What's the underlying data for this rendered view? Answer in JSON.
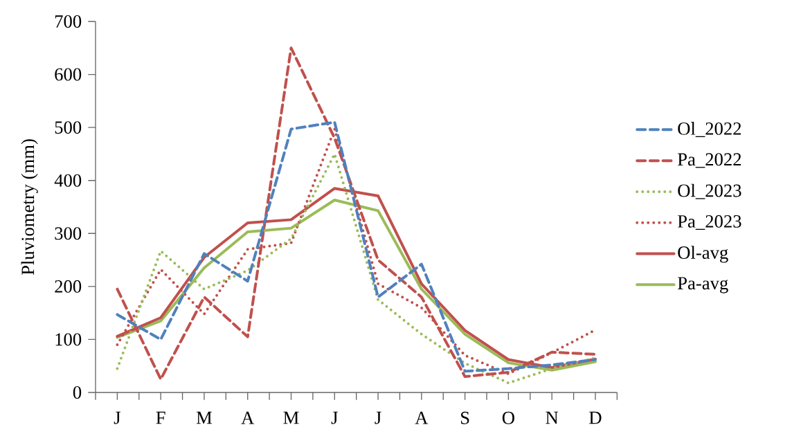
{
  "chart_data": {
    "type": "line",
    "ylabel": "Pluviometry (mm)",
    "categories": [
      "J",
      "F",
      "M",
      "A",
      "M",
      "J",
      "J",
      "A",
      "S",
      "O",
      "N",
      "D"
    ],
    "series": [
      {
        "name": "Ol_2022",
        "color": "#4f81bd",
        "line_style": "dashed",
        "values": [
          147,
          100,
          262,
          210,
          497,
          510,
          180,
          242,
          40,
          45,
          52,
          62
        ]
      },
      {
        "name": "Pa_2022",
        "color": "#c0504d",
        "line_style": "dashed",
        "values": [
          195,
          25,
          180,
          105,
          650,
          480,
          250,
          180,
          30,
          38,
          76,
          72
        ]
      },
      {
        "name": "Ol_2023",
        "color": "#9bbb59",
        "line_style": "dotted",
        "values": [
          45,
          267,
          195,
          230,
          290,
          450,
          175,
          110,
          55,
          18,
          45,
          65
        ]
      },
      {
        "name": "Pa_2023",
        "color": "#c0504d",
        "line_style": "dotted",
        "values": [
          90,
          232,
          148,
          270,
          282,
          497,
          205,
          160,
          70,
          35,
          75,
          118
        ]
      },
      {
        "name": "Ol-avg",
        "color": "#c0504d",
        "line_style": "solid",
        "values": [
          106,
          141,
          255,
          320,
          326,
          385,
          371,
          205,
          117,
          62,
          47,
          63
        ]
      },
      {
        "name": "Pa-avg",
        "color": "#9bbb59",
        "line_style": "solid",
        "values": [
          104,
          135,
          235,
          303,
          310,
          363,
          343,
          195,
          110,
          56,
          42,
          58
        ]
      }
    ],
    "ylim": [
      0,
      700
    ],
    "yticks": [
      0,
      100,
      200,
      300,
      400,
      500,
      600,
      700
    ],
    "legend": "right",
    "grid": false
  }
}
